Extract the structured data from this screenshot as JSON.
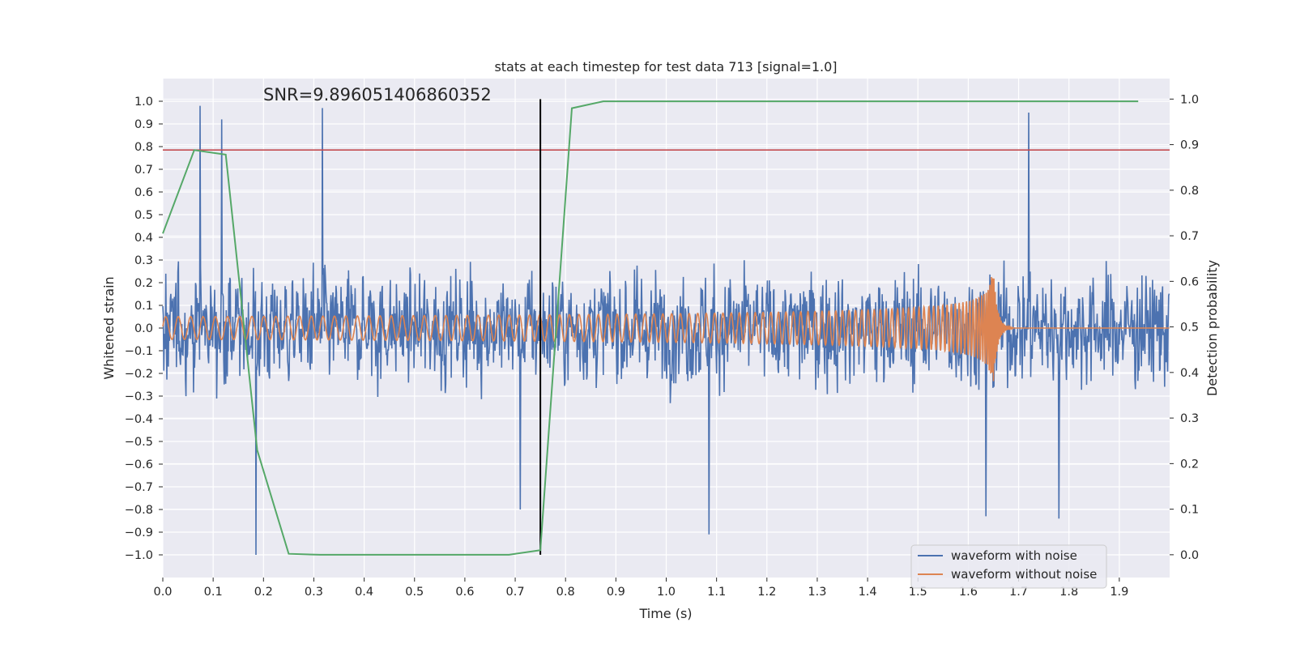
{
  "chart_data": {
    "type": "line",
    "title": "stats at each timestep for test data 713 [signal=1.0]",
    "annotation": "SNR=9.896051406860352",
    "xlabel": "Time (s)",
    "ylabel": "Whitened strain",
    "y2label": "Detection probability",
    "xlim": [
      0.0,
      2.0
    ],
    "ylim": [
      -1.1,
      1.1
    ],
    "y2lim": [
      -0.05,
      1.045
    ],
    "xticks": [
      "0.0",
      "0.1",
      "0.2",
      "0.3",
      "0.4",
      "0.5",
      "0.6",
      "0.7",
      "0.8",
      "0.9",
      "1.0",
      "1.1",
      "1.2",
      "1.3",
      "1.4",
      "1.5",
      "1.6",
      "1.7",
      "1.8",
      "1.9"
    ],
    "yticks": [
      "1.0",
      "0.9",
      "0.8",
      "0.7",
      "0.6",
      "0.5",
      "0.4",
      "0.3",
      "0.2",
      "0.1",
      "0.0",
      "−0.1",
      "−0.2",
      "−0.3",
      "−0.4",
      "−0.5",
      "−0.6",
      "−0.7",
      "−0.8",
      "−0.9",
      "−1.0"
    ],
    "y2ticks": [
      "1.0",
      "0.9",
      "0.8",
      "0.7",
      "0.6",
      "0.5",
      "0.4",
      "0.3",
      "0.2",
      "0.1",
      "0.0"
    ],
    "legend": [
      "waveform with noise",
      "waveform without noise"
    ],
    "legend_position": "lower-right",
    "colors": {
      "noisy": "#4c72b0",
      "clean": "#dd8452",
      "probability": "#55a868",
      "threshold": "#c44e52",
      "marker": "#000000",
      "plot_bg": "#eaeaf2",
      "grid": "#ffffff"
    },
    "series": [
      {
        "name": "Detection probability",
        "axis": "right",
        "x": [
          0.0,
          0.0625,
          0.125,
          0.1875,
          0.25,
          0.3125,
          0.375,
          0.4375,
          0.5,
          0.5625,
          0.625,
          0.6875,
          0.75,
          0.8125,
          0.875,
          0.9375,
          1.0,
          1.0625,
          1.125,
          1.1875,
          1.25,
          1.3125,
          1.375,
          1.4375,
          1.5,
          1.5625,
          1.625,
          1.6875,
          1.75,
          1.8125,
          1.875,
          1.9375
        ],
        "values": [
          0.705,
          0.888,
          0.878,
          0.23,
          0.002,
          0.0,
          0.0,
          0.0,
          0.0,
          0.0,
          0.0,
          0.0,
          0.01,
          0.98,
          0.995,
          0.995,
          0.995,
          0.995,
          0.995,
          0.995,
          0.995,
          0.995,
          0.995,
          0.995,
          0.995,
          0.995,
          0.995,
          0.995,
          0.995,
          0.995,
          0.995,
          0.995
        ]
      }
    ],
    "threshold_y": 0.785,
    "marker_x": 0.75,
    "noisy_peaks": [
      {
        "x": 0.074,
        "y": 0.98
      },
      {
        "x": 0.117,
        "y": 0.92
      },
      {
        "x": 0.317,
        "y": 0.97
      },
      {
        "x": 0.185,
        "y": -1.0
      },
      {
        "x": 0.71,
        "y": -0.8
      },
      {
        "x": 1.085,
        "y": -0.91
      },
      {
        "x": 1.72,
        "y": 0.95
      },
      {
        "x": 1.78,
        "y": -0.84
      },
      {
        "x": 1.635,
        "y": -0.83
      }
    ],
    "clean_waveform": {
      "start_amplitude": 0.05,
      "peak_amplitude": 0.25,
      "merger_time": 1.65,
      "ringdown_end": 1.69
    }
  }
}
